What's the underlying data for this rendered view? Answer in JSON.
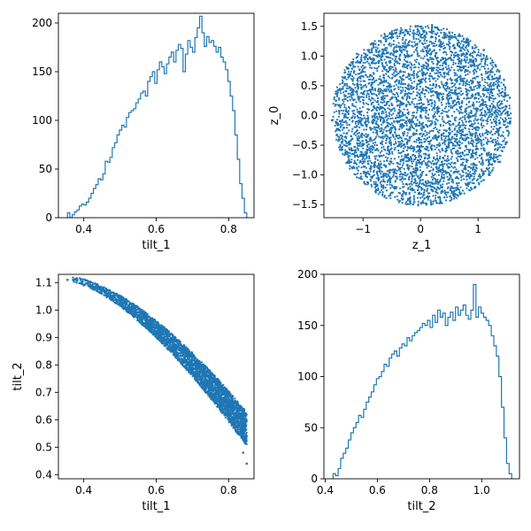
{
  "colors": {
    "series": "#1f77b4",
    "axis": "#000000"
  },
  "chart_data": [
    {
      "type": "histogram",
      "xlabel": "tilt_1",
      "ylabel": "",
      "xlim": [
        0.33,
        0.87
      ],
      "ylim": [
        0,
        210
      ],
      "xticks": [
        {
          "v": 0.4,
          "label": "0.4"
        },
        {
          "v": 0.6,
          "label": "0.6"
        },
        {
          "v": 0.8,
          "label": "0.8"
        }
      ],
      "yticks": [
        {
          "v": 0,
          "label": "0"
        },
        {
          "v": 50,
          "label": "50"
        },
        {
          "v": 100,
          "label": "100"
        },
        {
          "v": 150,
          "label": "150"
        },
        {
          "v": 200,
          "label": "200"
        }
      ],
      "bin_range": [
        0.355,
        0.85
      ],
      "values": [
        5,
        0,
        3,
        6,
        8,
        12,
        14,
        13,
        16,
        20,
        25,
        30,
        34,
        40,
        39,
        45,
        58,
        57,
        62,
        72,
        77,
        85,
        90,
        95,
        93,
        103,
        108,
        110,
        112,
        118,
        122,
        128,
        130,
        125,
        140,
        145,
        150,
        138,
        152,
        160,
        155,
        148,
        158,
        165,
        170,
        160,
        172,
        178,
        174,
        150,
        168,
        182,
        175,
        170,
        185,
        195,
        207,
        190,
        176,
        186,
        180,
        182,
        176,
        170,
        175,
        165,
        160,
        152,
        140,
        125,
        110,
        85,
        60,
        35,
        20,
        5
      ]
    },
    {
      "type": "scatter",
      "xlabel": "z_1",
      "ylabel": "z_0",
      "xlim": [
        -1.68,
        1.72
      ],
      "ylim": [
        -1.72,
        1.72
      ],
      "xticks": [
        {
          "v": -1,
          "label": "−1"
        },
        {
          "v": 0,
          "label": "0"
        },
        {
          "v": 1,
          "label": "1"
        }
      ],
      "yticks": [
        {
          "v": -1.5,
          "label": "−1.5"
        },
        {
          "v": -1.0,
          "label": "−1.0"
        },
        {
          "v": -0.5,
          "label": "−0.5"
        },
        {
          "v": 0.0,
          "label": "0.0"
        },
        {
          "v": 0.5,
          "label": "0.5"
        },
        {
          "v": 1.0,
          "label": "1.0"
        },
        {
          "v": 1.5,
          "label": "1.5"
        }
      ],
      "points": [
        [
          -1.54,
          -0.08
        ],
        [
          -1.47,
          0.25
        ],
        [
          -1.42,
          -0.4
        ],
        [
          -1.35,
          0.45
        ],
        [
          -1.3,
          -0.62
        ],
        [
          -1.22,
          0.7
        ],
        [
          -1.15,
          -0.8
        ],
        [
          -1.05,
          0.9
        ],
        [
          -0.95,
          -1.02
        ],
        [
          -0.85,
          1.1
        ],
        [
          -0.75,
          -1.18
        ],
        [
          -0.6,
          1.25
        ],
        [
          -0.5,
          -1.3
        ],
        [
          -0.35,
          1.38
        ],
        [
          -0.2,
          -1.4
        ],
        [
          -0.05,
          1.45
        ],
        [
          0.05,
          -1.47
        ],
        [
          0.2,
          1.52
        ],
        [
          0.35,
          -1.45
        ],
        [
          0.5,
          1.4
        ],
        [
          0.65,
          -1.35
        ],
        [
          0.8,
          1.28
        ],
        [
          0.95,
          -1.2
        ],
        [
          1.1,
          1.1
        ],
        [
          1.2,
          -1.0
        ],
        [
          1.3,
          0.85
        ],
        [
          1.38,
          -0.78
        ],
        [
          1.45,
          0.6
        ],
        [
          1.5,
          -0.45
        ],
        [
          1.55,
          0.3
        ],
        [
          1.56,
          -0.1
        ],
        [
          1.5,
          0.05
        ],
        [
          -0.9,
          0.1
        ],
        [
          -0.5,
          0.3
        ],
        [
          0.0,
          0.0
        ],
        [
          0.4,
          -0.3
        ],
        [
          0.8,
          0.4
        ],
        [
          -0.3,
          -0.6
        ],
        [
          0.2,
          0.75
        ],
        [
          0.6,
          -0.8
        ],
        [
          -0.7,
          0.55
        ],
        [
          1.0,
          -0.2
        ],
        [
          -1.1,
          -0.25
        ],
        [
          0.1,
          -1.0
        ],
        [
          -0.2,
          1.0
        ],
        [
          0.9,
          0.9
        ],
        [
          -0.8,
          -0.8
        ],
        [
          0.5,
          0.2
        ],
        [
          -0.4,
          -0.1
        ],
        [
          1.2,
          0.3
        ]
      ]
    },
    {
      "type": "scatter",
      "xlabel": "tilt_1",
      "ylabel": "tilt_2",
      "xlim": [
        0.33,
        0.87
      ],
      "ylim": [
        0.385,
        1.13
      ],
      "xticks": [
        {
          "v": 0.4,
          "label": "0.4"
        },
        {
          "v": 0.6,
          "label": "0.6"
        },
        {
          "v": 0.8,
          "label": "0.8"
        }
      ],
      "yticks": [
        {
          "v": 0.4,
          "label": "0.4"
        },
        {
          "v": 0.5,
          "label": "0.5"
        },
        {
          "v": 0.6,
          "label": "0.6"
        },
        {
          "v": 0.7,
          "label": "0.7"
        },
        {
          "v": 0.8,
          "label": "0.8"
        },
        {
          "v": 0.9,
          "label": "0.9"
        },
        {
          "v": 1.0,
          "label": "1.0"
        },
        {
          "v": 1.1,
          "label": "1.1"
        }
      ],
      "points": [
        [
          0.355,
          1.11
        ],
        [
          0.38,
          1.1
        ],
        [
          0.4,
          1.09
        ],
        [
          0.42,
          1.08
        ],
        [
          0.45,
          1.06
        ],
        [
          0.48,
          1.045
        ],
        [
          0.5,
          1.02
        ],
        [
          0.52,
          1.0
        ],
        [
          0.55,
          0.975
        ],
        [
          0.58,
          0.95
        ],
        [
          0.6,
          0.92
        ],
        [
          0.62,
          0.895
        ],
        [
          0.65,
          0.86
        ],
        [
          0.68,
          0.82
        ],
        [
          0.7,
          0.79
        ],
        [
          0.72,
          0.76
        ],
        [
          0.75,
          0.71
        ],
        [
          0.78,
          0.66
        ],
        [
          0.8,
          0.62
        ],
        [
          0.82,
          0.56
        ],
        [
          0.84,
          0.48
        ],
        [
          0.85,
          0.44
        ]
      ]
    },
    {
      "type": "histogram",
      "xlabel": "tilt_2",
      "ylabel": "",
      "xlim": [
        0.395,
        1.145
      ],
      "ylim": [
        0,
        200
      ],
      "xticks": [
        {
          "v": 0.4,
          "label": "0.4"
        },
        {
          "v": 0.6,
          "label": "0.6"
        },
        {
          "v": 0.8,
          "label": "0.8"
        },
        {
          "v": 1.0,
          "label": "1.0"
        }
      ],
      "yticks": [
        {
          "v": 0,
          "label": "0"
        },
        {
          "v": 50,
          "label": "50"
        },
        {
          "v": 100,
          "label": "100"
        },
        {
          "v": 150,
          "label": "150"
        },
        {
          "v": 200,
          "label": "200"
        }
      ],
      "bin_range": [
        0.43,
        1.115
      ],
      "values": [
        5,
        3,
        10,
        20,
        25,
        30,
        38,
        45,
        50,
        55,
        62,
        60,
        68,
        75,
        80,
        85,
        92,
        98,
        100,
        105,
        112,
        110,
        118,
        122,
        125,
        120,
        128,
        132,
        130,
        138,
        135,
        140,
        143,
        145,
        148,
        152,
        150,
        155,
        148,
        160,
        153,
        165,
        158,
        162,
        150,
        158,
        163,
        155,
        168,
        160,
        165,
        170,
        160,
        156,
        165,
        190,
        158,
        168,
        162,
        158,
        155,
        150,
        140,
        130,
        120,
        100,
        70,
        40,
        15,
        5
      ]
    }
  ]
}
